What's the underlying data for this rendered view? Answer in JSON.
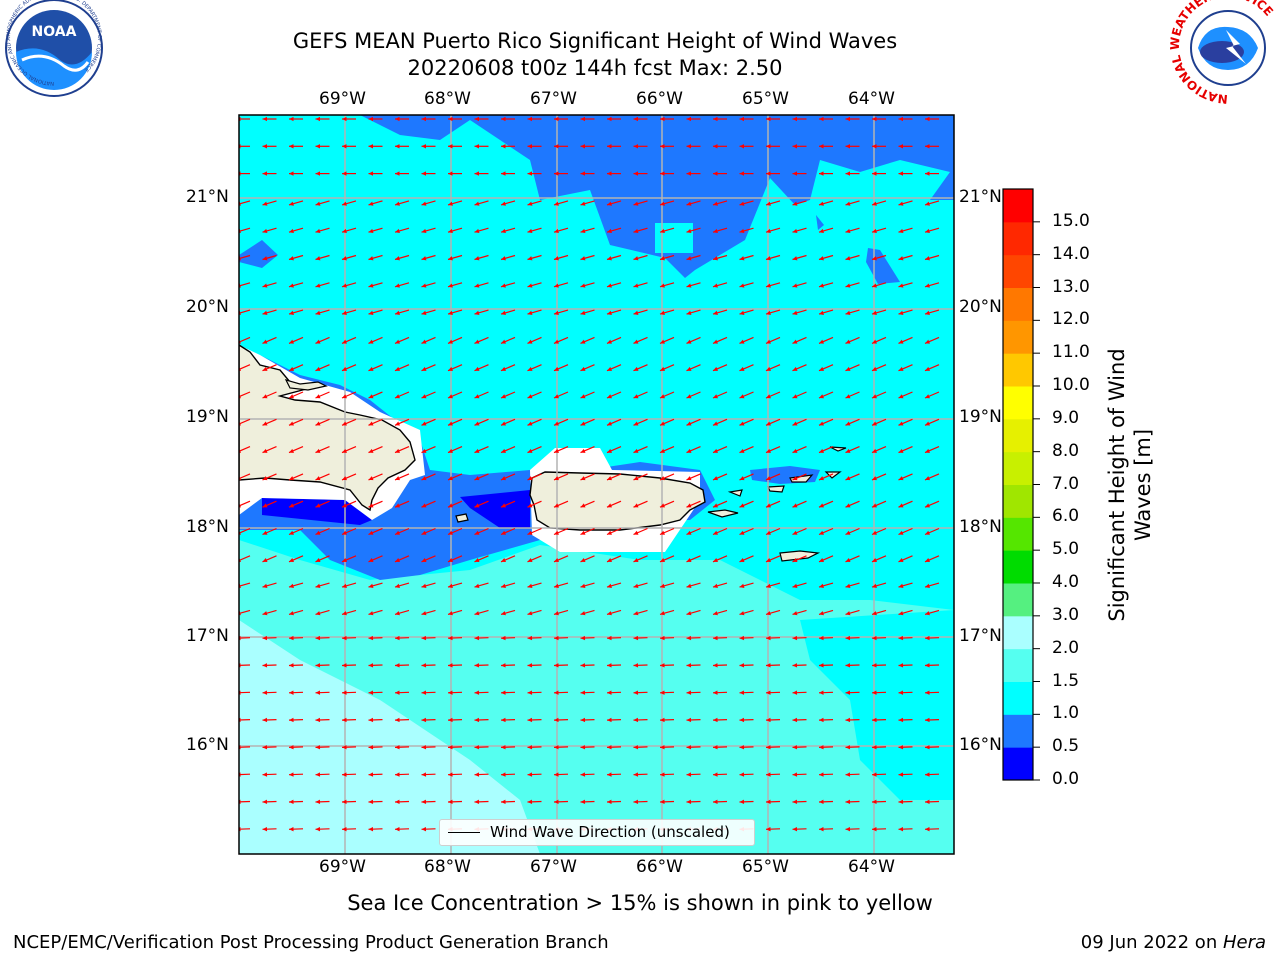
{
  "header": {
    "title_line1": "GEFS MEAN Puerto Rico Significant Height of Wind Waves",
    "title_line2": "20220608 t00z 144h fcst   Max: 2.50"
  },
  "logos": {
    "noaa_text": "NOAA",
    "noaa_ring_text": "NATIONAL OCEANIC AND ATMOSPHERIC ADMINISTRATION · U.S. DEPARTMENT OF COMMERCE",
    "nws_ring_text": "NATIONAL WEATHER SERVICE"
  },
  "axes": {
    "lon_labels": [
      "69°W",
      "68°W",
      "67°W",
      "66°W",
      "65°W",
      "64°W"
    ],
    "lat_labels": [
      "21°N",
      "20°N",
      "19°N",
      "18°N",
      "17°N",
      "16°N"
    ]
  },
  "legend": {
    "label": "Wind Wave Direction (unscaled)"
  },
  "colorbar": {
    "label": "Significant Height of Wind Waves [m]",
    "label_line1": "Significant Height of Wind",
    "label_line2": "Waves [m]",
    "ticks": [
      "0.0",
      "0.5",
      "1.0",
      "1.5",
      "2.0",
      "3.0",
      "4.0",
      "5.0",
      "6.0",
      "7.0",
      "8.0",
      "9.0",
      "10.0",
      "11.0",
      "12.0",
      "13.0",
      "14.0",
      "15.0"
    ],
    "colors": [
      "#0000ff",
      "#1e78ff",
      "#00ffff",
      "#55fff0",
      "#aaffff",
      "#55f080",
      "#00dc00",
      "#55e600",
      "#a0e600",
      "#c8f000",
      "#e6f000",
      "#ffff00",
      "#ffc800",
      "#ff9600",
      "#ff7800",
      "#ff4600",
      "#ff2800",
      "#ff0000"
    ]
  },
  "colors": {
    "land": "#efefdc",
    "arrow": "#ff0000",
    "grid": "#b4b4b4"
  },
  "footer": {
    "sea_ice_note": "Sea Ice Concentration > 15% is shown in pink to yellow",
    "credit": "NCEP/EMC/Verification Post Processing Product Generation Branch",
    "date": "09 Jun 2022 on ",
    "host": "Hera"
  }
}
